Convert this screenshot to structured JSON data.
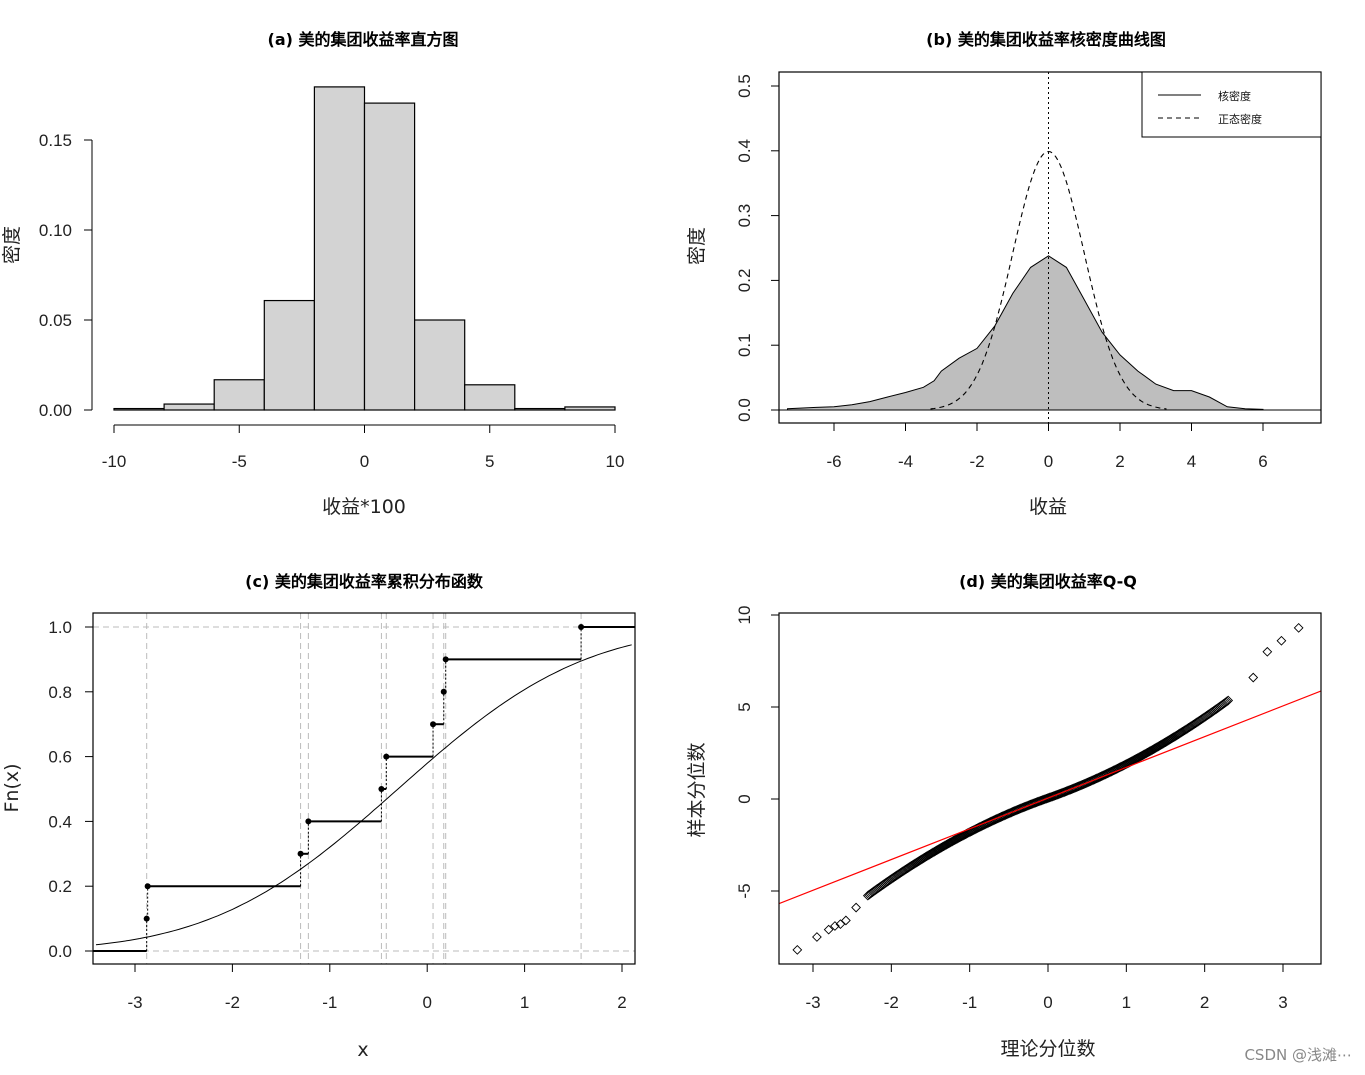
{
  "watermark": "CSDN @浅滩⋯",
  "chart_data": [
    {
      "id": "a",
      "type": "bar",
      "title": "(a) 美的集团收益率直方图",
      "xlabel": "收益*100",
      "ylabel": "密度",
      "xlim": [
        -10,
        10
      ],
      "ylim": [
        0,
        0.18
      ],
      "bin_edges": [
        -10,
        -8,
        -6,
        -4,
        -2,
        0,
        2,
        4,
        6,
        8,
        10
      ],
      "values": [
        0.0008,
        0.0033,
        0.0168,
        0.0608,
        0.1795,
        0.1705,
        0.05,
        0.014,
        0.0008,
        0.0017
      ],
      "xticks": [
        -10,
        -5,
        0,
        5,
        10
      ],
      "yticks": [
        0.0,
        0.05,
        0.1,
        0.15
      ],
      "ytick_labels": [
        "0.00",
        "0.05",
        "0.10",
        "0.15"
      ],
      "colors": {
        "fill": "#d3d3d3",
        "stroke": "#000000"
      }
    },
    {
      "id": "b",
      "type": "area",
      "title": "(b) 美的集团收益率核密度曲线图",
      "xlabel": "收益",
      "ylabel": "密度",
      "xlim": [
        -7.5,
        7.5
      ],
      "ylim": [
        0,
        0.5
      ],
      "xticks": [
        -6,
        -4,
        -2,
        0,
        2,
        4,
        6
      ],
      "yticks": [
        0.0,
        0.1,
        0.2,
        0.3,
        0.4,
        0.5
      ],
      "ytick_labels": [
        "0.0",
        "0.1",
        "0.2",
        "0.3",
        "0.4",
        "0.5"
      ],
      "vline_x": 0,
      "legend": {
        "position": "top-right",
        "entries": [
          "核密度",
          "正态密度"
        ]
      },
      "series": [
        {
          "name": "核密度",
          "style": "solid-filled",
          "x": [
            -7.3,
            -6.5,
            -6,
            -5.5,
            -5,
            -4.5,
            -4,
            -3.5,
            -3.2,
            -3,
            -2.5,
            -2,
            -1.5,
            -1,
            -0.5,
            0,
            0.5,
            1,
            1.5,
            2,
            2.5,
            3,
            3.5,
            4,
            4.5,
            5,
            5.5,
            6
          ],
          "y": [
            0.002,
            0.004,
            0.005,
            0.008,
            0.013,
            0.02,
            0.027,
            0.035,
            0.045,
            0.06,
            0.08,
            0.095,
            0.13,
            0.18,
            0.22,
            0.238,
            0.22,
            0.17,
            0.12,
            0.085,
            0.06,
            0.04,
            0.03,
            0.03,
            0.02,
            0.005,
            0.002,
            0.001
          ]
        },
        {
          "name": "正态密度",
          "style": "dashed",
          "mu": 0,
          "sigma": 1,
          "x_range": [
            -3.3,
            3.3
          ]
        }
      ],
      "colors": {
        "fill": "#bebebe"
      }
    },
    {
      "id": "c",
      "type": "line",
      "title": "(c) 美的集团收益率累积分布函数",
      "xlabel": "x",
      "ylabel": "Fn(x)",
      "xlim": [
        -3.4,
        2.1
      ],
      "ylim": [
        0,
        1
      ],
      "xticks": [
        -3,
        -2,
        -1,
        0,
        1,
        2
      ],
      "yticks": [
        0.0,
        0.2,
        0.4,
        0.6,
        0.8,
        1.0
      ],
      "ytick_labels": [
        "0.0",
        "0.2",
        "0.4",
        "0.6",
        "0.8",
        "1.0"
      ],
      "ecdf_points": [
        -2.88,
        -2.87,
        -1.3,
        -1.22,
        -0.47,
        -0.42,
        0.06,
        0.17,
        0.19,
        1.58
      ],
      "ecdf_values": [
        0.1,
        0.2,
        0.3,
        0.4,
        0.5,
        0.6,
        0.7,
        0.8,
        0.9,
        1.0
      ],
      "reference_lines_x": [
        -2.88,
        -1.3,
        -1.22,
        -0.47,
        -0.42,
        0.06,
        0.17,
        0.19,
        1.58
      ],
      "reference_lines_y": [
        0,
        1
      ],
      "series": [
        {
          "name": "",
          "style": "normal-cdf",
          "mu": -0.3,
          "sigma": 1.5
        }
      ],
      "colors": {
        "ref": "#bbbbbb"
      }
    },
    {
      "id": "d",
      "type": "scatter",
      "title": "(d) 美的集团收益率Q-Q",
      "xlabel": "理论分位数",
      "ylabel": "样本分位数",
      "xlim": [
        -3.5,
        3.5
      ],
      "ylim": [
        -9,
        10
      ],
      "xticks": [
        -3,
        -2,
        -1,
        0,
        1,
        2,
        3
      ],
      "yticks": [
        -5,
        0,
        5,
        10
      ],
      "qq_line": {
        "slope": 1.67,
        "intercept": 0.05
      },
      "tail_points": {
        "x": [
          -3.2,
          -2.95,
          -2.8,
          -2.72,
          -2.65,
          -2.58,
          -2.45,
          2.62,
          2.8,
          2.98,
          3.2
        ],
        "y": [
          -8.2,
          -7.5,
          -7.1,
          -6.9,
          -6.8,
          -6.6,
          -5.9,
          6.6,
          8.0,
          8.6,
          9.3
        ]
      },
      "body_shape": {
        "a": 1.5,
        "b": 0.35,
        "n": 300
      },
      "colors": {
        "points": "#000000",
        "line": "#ff0000"
      }
    }
  ]
}
